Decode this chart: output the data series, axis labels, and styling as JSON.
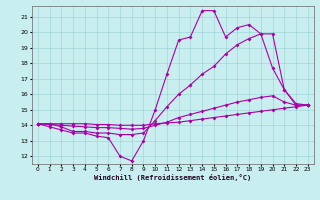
{
  "xlabel": "Windchill (Refroidissement éolien,°C)",
  "background_color": "#c8eef0",
  "line_color": "#aa00aa",
  "xlim": [
    -0.5,
    23.5
  ],
  "ylim": [
    11.5,
    21.7
  ],
  "yticks": [
    12,
    13,
    14,
    15,
    16,
    17,
    18,
    19,
    20,
    21
  ],
  "xticks": [
    0,
    1,
    2,
    3,
    4,
    5,
    6,
    7,
    8,
    9,
    10,
    11,
    12,
    13,
    14,
    15,
    16,
    17,
    18,
    19,
    20,
    21,
    22,
    23
  ],
  "line1_x": [
    0,
    1,
    2,
    3,
    4,
    5,
    6,
    7,
    8,
    9,
    10,
    11,
    12,
    13,
    14,
    15,
    16,
    17,
    18,
    19,
    20,
    21,
    22,
    23
  ],
  "line1_y": [
    14.1,
    13.9,
    13.7,
    13.5,
    13.5,
    13.3,
    13.2,
    12.0,
    11.7,
    13.0,
    15.0,
    17.3,
    19.5,
    19.7,
    21.4,
    21.4,
    19.7,
    20.3,
    20.5,
    19.9,
    17.7,
    16.3,
    15.3,
    15.3
  ],
  "line2_x": [
    0,
    1,
    2,
    3,
    4,
    5,
    6,
    7,
    8,
    9,
    10,
    11,
    12,
    13,
    14,
    15,
    16,
    17,
    18,
    19,
    20,
    21,
    22,
    23
  ],
  "line2_y": [
    14.1,
    14.05,
    14.0,
    13.95,
    13.9,
    13.85,
    13.85,
    13.8,
    13.75,
    13.8,
    14.0,
    14.2,
    14.5,
    14.7,
    14.9,
    15.1,
    15.3,
    15.5,
    15.65,
    15.8,
    15.9,
    15.5,
    15.3,
    15.3
  ],
  "line3_x": [
    0,
    1,
    2,
    3,
    4,
    5,
    6,
    7,
    8,
    9,
    10,
    11,
    12,
    13,
    14,
    15,
    16,
    17,
    18,
    19,
    20,
    21,
    22,
    23
  ],
  "line3_y": [
    14.1,
    14.1,
    13.9,
    13.6,
    13.6,
    13.5,
    13.5,
    13.4,
    13.4,
    13.5,
    14.3,
    15.2,
    16.0,
    16.6,
    17.3,
    17.8,
    18.6,
    19.2,
    19.6,
    19.9,
    19.9,
    16.3,
    15.4,
    15.3
  ],
  "line4_x": [
    0,
    1,
    2,
    3,
    4,
    5,
    6,
    7,
    8,
    9,
    10,
    11,
    12,
    13,
    14,
    15,
    16,
    17,
    18,
    19,
    20,
    21,
    22,
    23
  ],
  "line4_y": [
    14.1,
    14.1,
    14.1,
    14.1,
    14.1,
    14.05,
    14.05,
    14.0,
    14.0,
    14.0,
    14.1,
    14.15,
    14.2,
    14.3,
    14.4,
    14.5,
    14.6,
    14.7,
    14.8,
    14.9,
    15.0,
    15.1,
    15.2,
    15.3
  ]
}
